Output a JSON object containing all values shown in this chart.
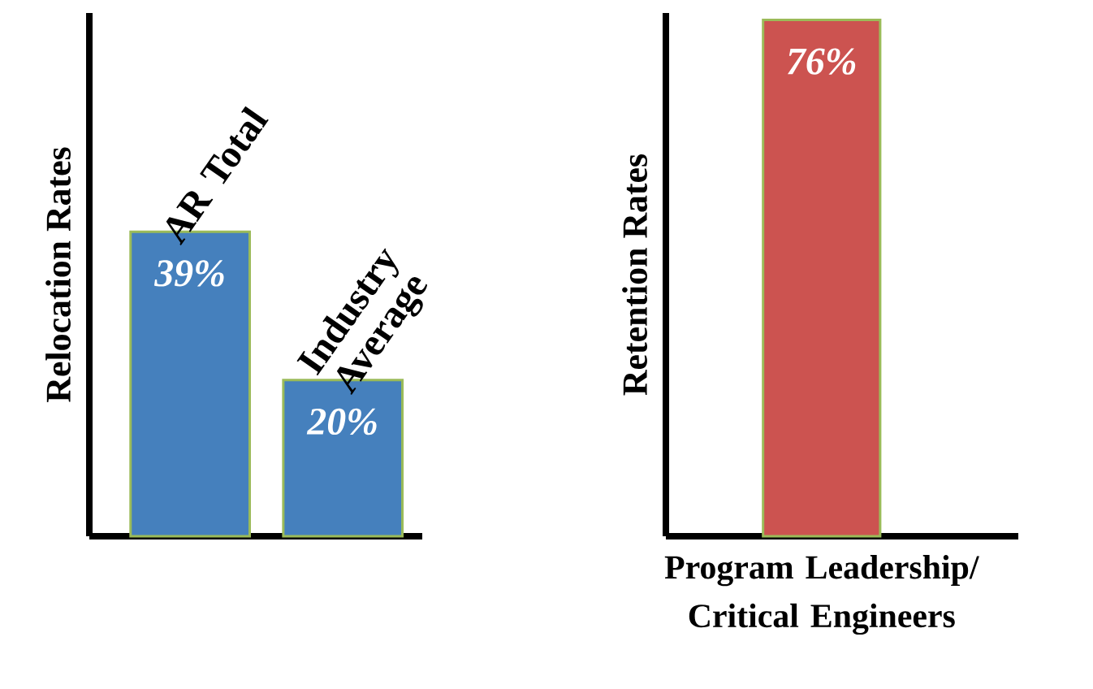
{
  "chart_data": [
    {
      "type": "bar",
      "ylabel": "Relocation Rates",
      "categories": [
        "AR Total",
        "Industry Average"
      ],
      "values": [
        39,
        20
      ],
      "value_labels": [
        "39%",
        "20%"
      ],
      "color": "#4580bd",
      "ylim": [
        0,
        67
      ],
      "tick_labels": false
    },
    {
      "type": "bar",
      "ylabel": "Retention Rates",
      "categories": [
        "Program Leadership/ Critical Engineers"
      ],
      "values": [
        76
      ],
      "value_labels": [
        "76%"
      ],
      "color": "#cc5350",
      "ylim": [
        0,
        77
      ],
      "tick_labels": "x"
    }
  ]
}
